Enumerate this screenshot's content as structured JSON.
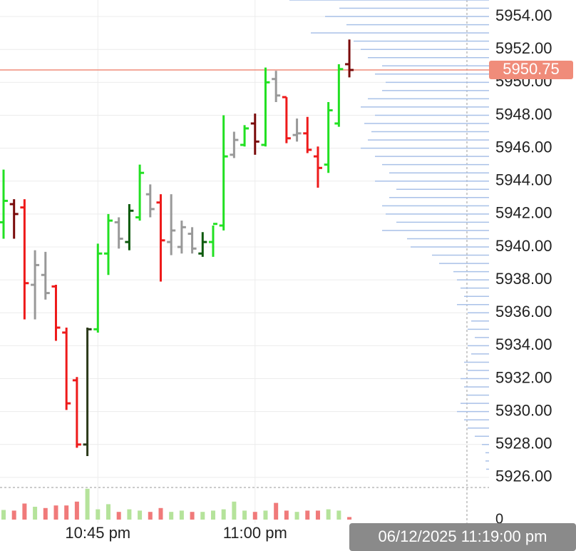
{
  "chart_data": {
    "type": "ohlc",
    "open": [
      5941.5,
      5942.6,
      5942.4,
      5937.7,
      5938.3,
      5937.6,
      5934.8,
      5931.9,
      5928.0,
      5935.0,
      5939.6,
      5941.5,
      5940.3,
      5941.8,
      5943.2,
      5942.7,
      5940.3,
      5940.0,
      5940.8,
      5939.6,
      5940.3,
      5941.3,
      5945.6,
      5946.2,
      5947.5,
      5946.2,
      5950.2,
      5949.1,
      5946.8,
      5946.9,
      5945.5,
      5945.0,
      5947.5,
      5951.1
    ],
    "high": [
      5944.7,
      5942.9,
      5942.9,
      5939.8,
      5939.7,
      5937.7,
      5935.1,
      5932.1,
      5935.1,
      5940.2,
      5942.0,
      5941.8,
      5942.6,
      5945.0,
      5943.8,
      5943.2,
      5943.2,
      5941.6,
      5941.2,
      5940.9,
      5941.3,
      5948.0,
      5947.0,
      5947.4,
      5948.1,
      5950.9,
      5950.7,
      5949.1,
      5947.8,
      5947.9,
      5946.1,
      5948.8,
      5951.1,
      5952.6
    ],
    "low": [
      5940.5,
      5940.5,
      5935.6,
      5935.6,
      5936.8,
      5934.3,
      5930.1,
      5927.8,
      5927.3,
      5934.8,
      5938.3,
      5939.9,
      5939.8,
      5941.6,
      5941.8,
      5937.9,
      5939.5,
      5939.6,
      5939.6,
      5939.4,
      5939.4,
      5941.0,
      5945.4,
      5946.1,
      5945.6,
      5946.1,
      5948.8,
      5946.3,
      5946.4,
      5945.7,
      5943.6,
      5944.5,
      5947.3,
      5950.3
    ],
    "close": [
      5942.8,
      5942.0,
      5937.8,
      5938.9,
      5937.2,
      5935.1,
      5930.5,
      5928.0,
      5935.0,
      5939.6,
      5941.6,
      5940.5,
      5942.2,
      5944.5,
      5942.3,
      5940.4,
      5941.0,
      5941.2,
      5939.9,
      5940.3,
      5941.4,
      5945.5,
      5946.5,
      5947.2,
      5946.4,
      5950.0,
      5949.2,
      5946.6,
      5946.9,
      5945.9,
      5944.8,
      5948.3,
      5950.8,
      5950.75
    ],
    "colors": [
      "#22e022",
      "#7a0a0a",
      "#ee1a1a",
      "#999999",
      "#999999",
      "#ee1a1a",
      "#ee1a1a",
      "#ee1a1a",
      "#2b3a1a",
      "#22e022",
      "#22e022",
      "#999999",
      "#0d5a0d",
      "#22e022",
      "#999999",
      "#ee1a1a",
      "#999999",
      "#999999",
      "#999999",
      "#0d5a0d",
      "#22e022",
      "#22e022",
      "#999999",
      "#22e022",
      "#7a0a0a",
      "#22e022",
      "#999999",
      "#ee1a1a",
      "#999999",
      "#ee1a1a",
      "#ee1a1a",
      "#22e022",
      "#22e022",
      "#7a0a0a"
    ],
    "xlim": [
      -0.34,
      46.33
    ],
    "xticks": [
      {
        "value": 9,
        "label": "10:45 pm"
      },
      {
        "value": 24,
        "label": "11:00 pm"
      }
    ],
    "ylim": [
      5925.39,
      5955.0
    ],
    "yticks": [
      {
        "value": 5926,
        "label": "5926.00"
      },
      {
        "value": 5928,
        "label": "5928.00"
      },
      {
        "value": 5930,
        "label": "5930.00"
      },
      {
        "value": 5932,
        "label": "5932.00"
      },
      {
        "value": 5934,
        "label": "5934.00"
      },
      {
        "value": 5936,
        "label": "5936.00"
      },
      {
        "value": 5938,
        "label": "5938.00"
      },
      {
        "value": 5940,
        "label": "5940.00"
      },
      {
        "value": 5942,
        "label": "5942.00"
      },
      {
        "value": 5944,
        "label": "5944.00"
      },
      {
        "value": 5946,
        "label": "5946.00"
      },
      {
        "value": 5948,
        "label": "5948.00"
      },
      {
        "value": 5950,
        "label": "5950.00"
      },
      {
        "value": 5952,
        "label": "5952.00"
      },
      {
        "value": 5954,
        "label": "5954.00"
      }
    ],
    "grid": true,
    "volume": {
      "values": [
        15,
        14,
        25,
        20,
        18,
        22,
        22,
        28,
        48,
        16,
        24,
        12,
        16,
        14,
        12,
        18,
        12,
        14,
        12,
        12,
        14,
        16,
        28,
        14,
        12,
        14,
        26,
        14,
        12,
        14,
        14,
        16,
        14,
        4
      ],
      "ylim": [
        0,
        50
      ],
      "yticks": [
        0
      ],
      "up_color": "#b5e39b",
      "down_color": "#f07a7a"
    },
    "profile": {
      "prices": [
        5955,
        5954.5,
        5954,
        5953.5,
        5953,
        5952.5,
        5952,
        5951.5,
        5951,
        5950.5,
        5950,
        5949.5,
        5949,
        5948.5,
        5948,
        5947.5,
        5947,
        5946.5,
        5946,
        5945.5,
        5945,
        5944.5,
        5944,
        5943.5,
        5943,
        5942.5,
        5942,
        5941.5,
        5941,
        5940.5,
        5940,
        5939.5,
        5939,
        5938.5,
        5938,
        5937.5,
        5937,
        5936.5,
        5936,
        5935.5,
        5935,
        5934.5,
        5934,
        5933.5,
        5933,
        5932.5,
        5932,
        5931.5,
        5931,
        5930.5,
        5930,
        5929.5,
        5929,
        5928.5,
        5928,
        5927.5,
        5927,
        5926.5
      ],
      "values": [
        280,
        210,
        230,
        200,
        250,
        190,
        180,
        170,
        150,
        160,
        145,
        150,
        170,
        180,
        160,
        175,
        165,
        170,
        180,
        160,
        150,
        140,
        160,
        130,
        140,
        150,
        145,
        130,
        150,
        115,
        110,
        80,
        70,
        50,
        45,
        40,
        35,
        45,
        30,
        25,
        30,
        20,
        30,
        25,
        35,
        30,
        40,
        35,
        30,
        40,
        45,
        35,
        30,
        20,
        10,
        5,
        5,
        4
      ],
      "xlim": [
        0,
        300
      ],
      "color": "#a9c1e8"
    },
    "last_price": 5950.75,
    "last_price_color": "#f08c7a",
    "crosshair_label": "06/12/2025 11:19:00 pm"
  }
}
